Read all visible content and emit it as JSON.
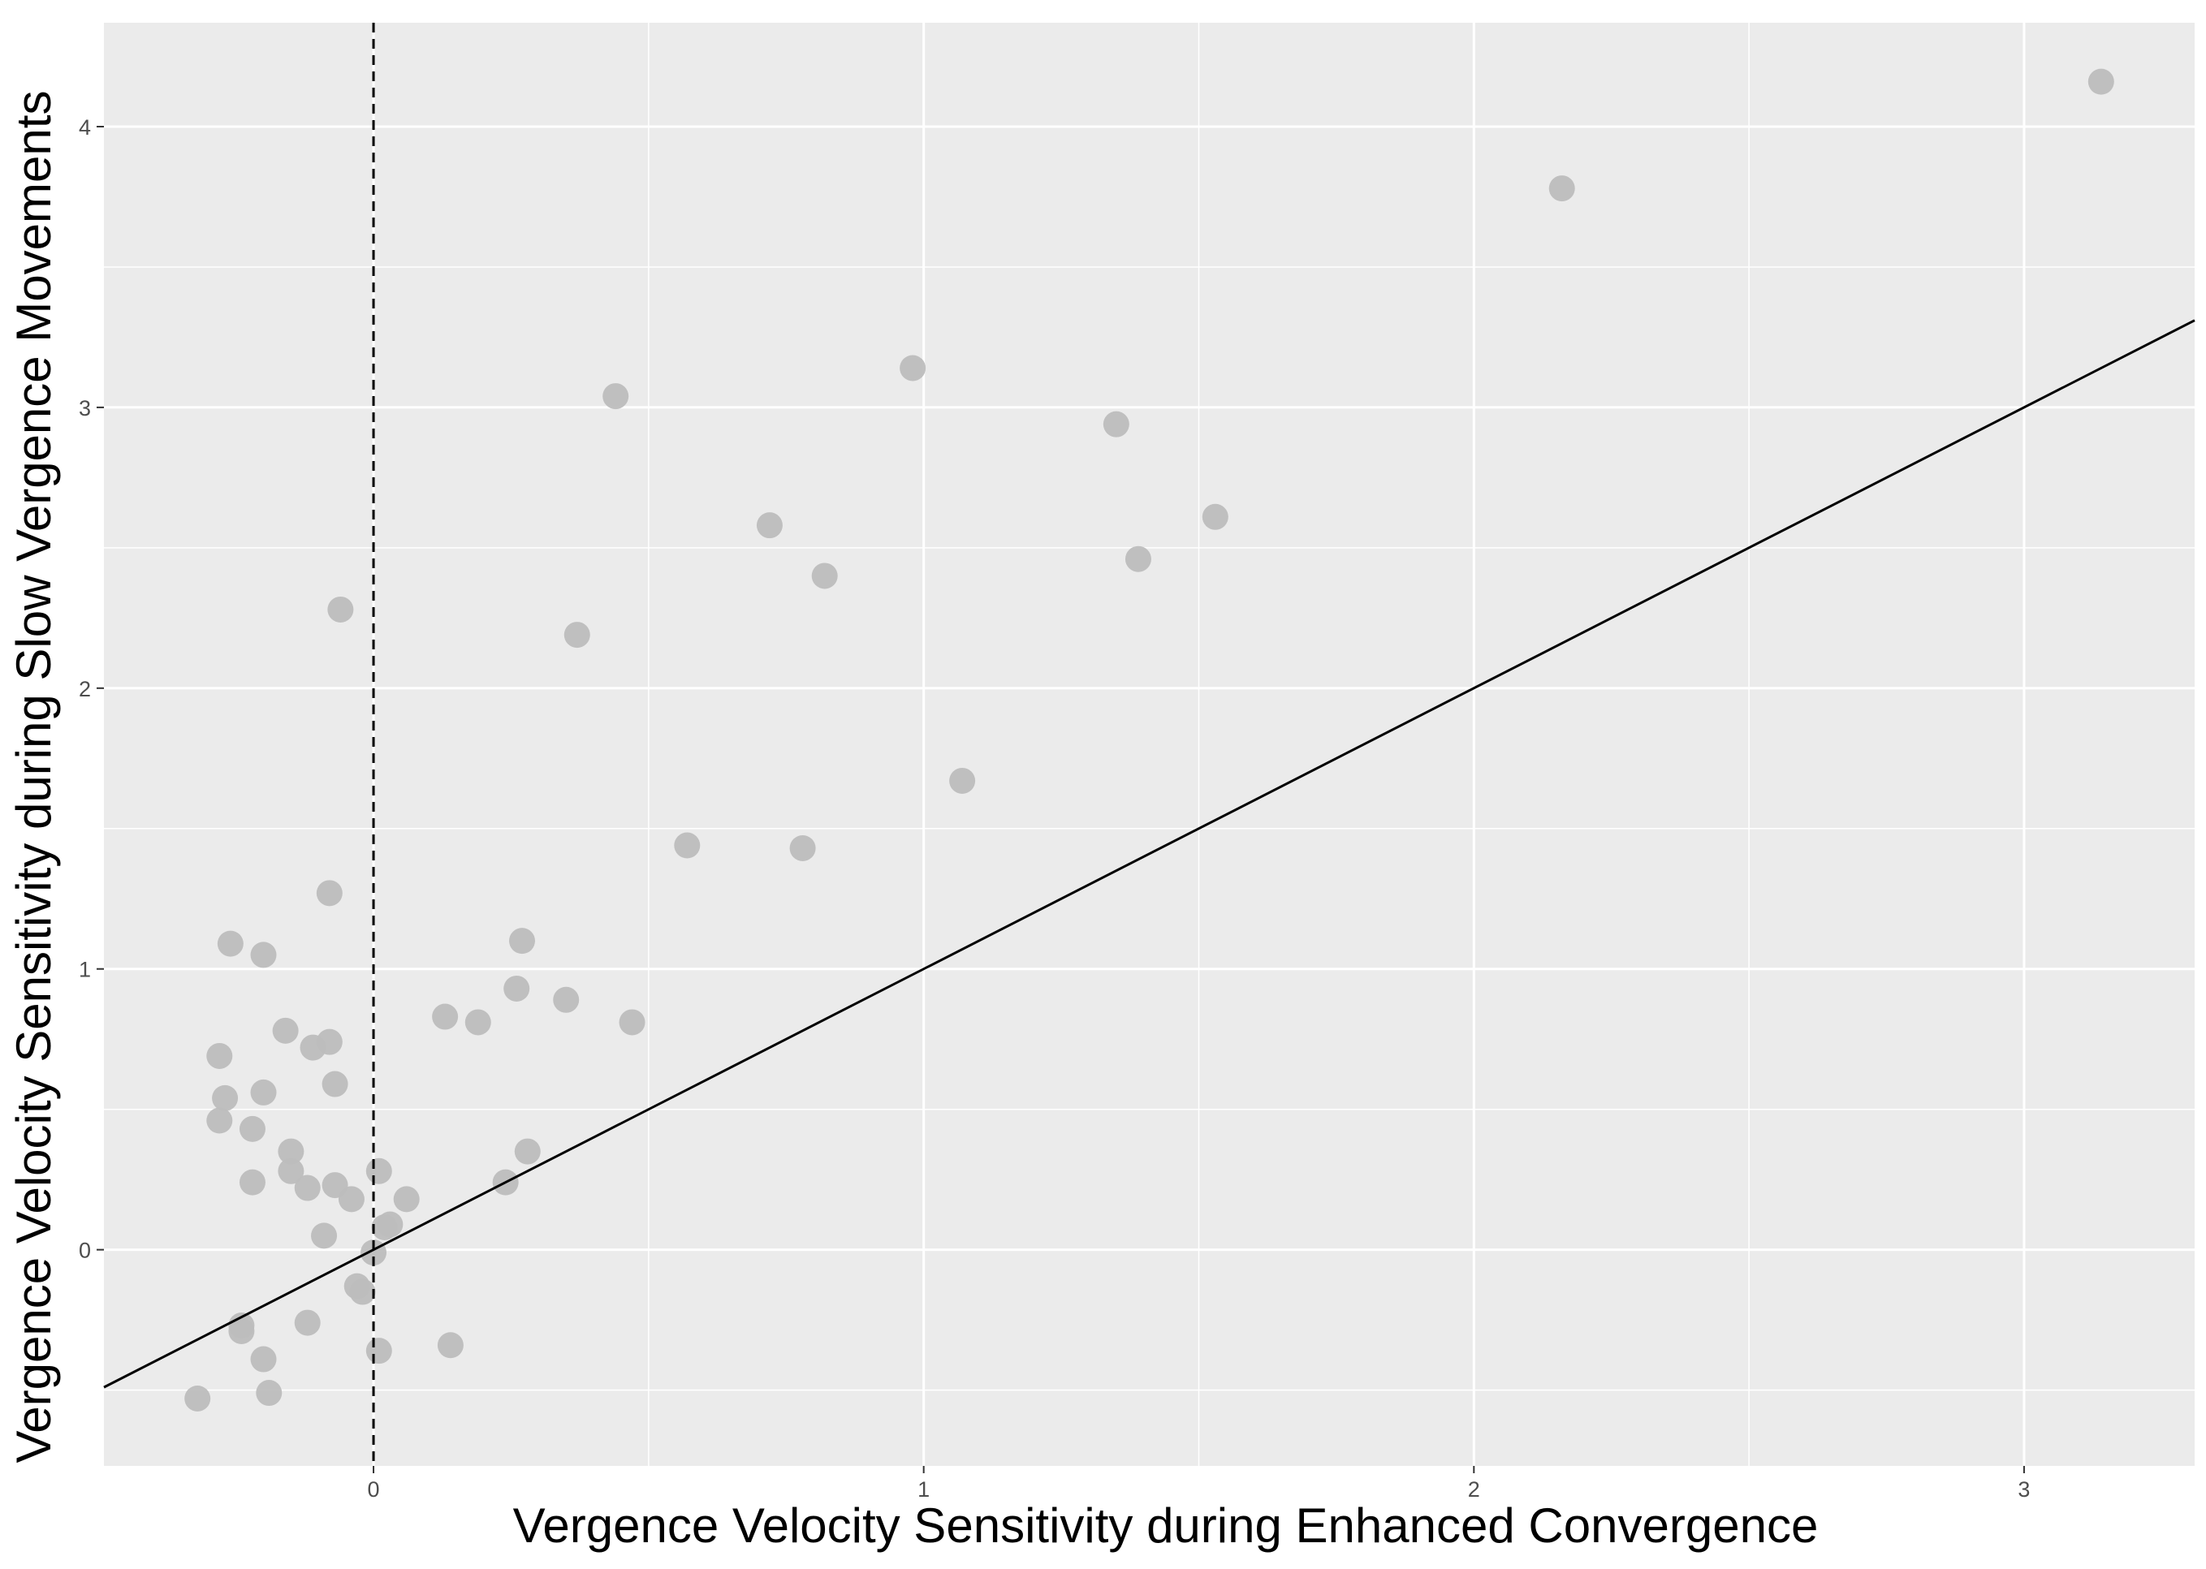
{
  "chart_data": {
    "type": "scatter",
    "xlabel": "Vergence Velocity Sensitivity during Enhanced Convergence",
    "ylabel": "Vergence Velocity Sensitivity during Slow Vergence Movements",
    "xlim": [
      -0.49,
      3.31
    ],
    "ylim": [
      -0.77,
      4.37
    ],
    "x_ticks": [
      0,
      1,
      2,
      3
    ],
    "y_ticks": [
      0,
      1,
      2,
      3,
      4
    ],
    "grid": true,
    "panel_color": "#ebebeb",
    "grid_color": "#ffffff",
    "point_color": "#bdbdbd",
    "reference_line": {
      "type": "identity",
      "slope": 1,
      "intercept": 0,
      "color": "#000000"
    },
    "vertical_line": {
      "x": 0,
      "style": "dashed",
      "color": "#000000"
    },
    "points": [
      {
        "x": 3.14,
        "y": 4.16
      },
      {
        "x": 2.16,
        "y": 3.78
      },
      {
        "x": 0.98,
        "y": 3.14
      },
      {
        "x": 0.44,
        "y": 3.04
      },
      {
        "x": 1.35,
        "y": 2.94
      },
      {
        "x": 1.53,
        "y": 2.61
      },
      {
        "x": 0.72,
        "y": 2.58
      },
      {
        "x": 1.39,
        "y": 2.46
      },
      {
        "x": 0.82,
        "y": 2.4
      },
      {
        "x": -0.06,
        "y": 2.28
      },
      {
        "x": 0.37,
        "y": 2.19
      },
      {
        "x": 1.07,
        "y": 1.67
      },
      {
        "x": 0.57,
        "y": 1.44
      },
      {
        "x": 0.78,
        "y": 1.43
      },
      {
        "x": -0.08,
        "y": 1.27
      },
      {
        "x": -0.26,
        "y": 1.09
      },
      {
        "x": 0.27,
        "y": 1.1
      },
      {
        "x": -0.2,
        "y": 1.05
      },
      {
        "x": 0.26,
        "y": 0.93
      },
      {
        "x": 0.35,
        "y": 0.89
      },
      {
        "x": 0.13,
        "y": 0.83
      },
      {
        "x": 0.19,
        "y": 0.81
      },
      {
        "x": 0.47,
        "y": 0.81
      },
      {
        "x": -0.16,
        "y": 0.78
      },
      {
        "x": -0.08,
        "y": 0.74
      },
      {
        "x": -0.11,
        "y": 0.72
      },
      {
        "x": -0.28,
        "y": 0.69
      },
      {
        "x": -0.07,
        "y": 0.59
      },
      {
        "x": -0.2,
        "y": 0.56
      },
      {
        "x": -0.27,
        "y": 0.54
      },
      {
        "x": -0.28,
        "y": 0.46
      },
      {
        "x": -0.22,
        "y": 0.43
      },
      {
        "x": -0.15,
        "y": 0.35
      },
      {
        "x": 0.28,
        "y": 0.35
      },
      {
        "x": 0.01,
        "y": 0.28
      },
      {
        "x": -0.15,
        "y": 0.28
      },
      {
        "x": -0.22,
        "y": 0.24
      },
      {
        "x": 0.24,
        "y": 0.24
      },
      {
        "x": -0.07,
        "y": 0.23
      },
      {
        "x": -0.12,
        "y": 0.22
      },
      {
        "x": -0.04,
        "y": 0.18
      },
      {
        "x": 0.06,
        "y": 0.18
      },
      {
        "x": 0.03,
        "y": 0.09
      },
      {
        "x": 0.02,
        "y": 0.08
      },
      {
        "x": -0.09,
        "y": 0.05
      },
      {
        "x": 0.0,
        "y": -0.01
      },
      {
        "x": -0.03,
        "y": -0.13
      },
      {
        "x": -0.02,
        "y": -0.15
      },
      {
        "x": -0.24,
        "y": -0.27
      },
      {
        "x": -0.24,
        "y": -0.29
      },
      {
        "x": -0.12,
        "y": -0.26
      },
      {
        "x": 0.14,
        "y": -0.34
      },
      {
        "x": 0.01,
        "y": -0.36
      },
      {
        "x": -0.2,
        "y": -0.39
      },
      {
        "x": -0.19,
        "y": -0.51
      },
      {
        "x": -0.32,
        "y": -0.53
      }
    ]
  }
}
